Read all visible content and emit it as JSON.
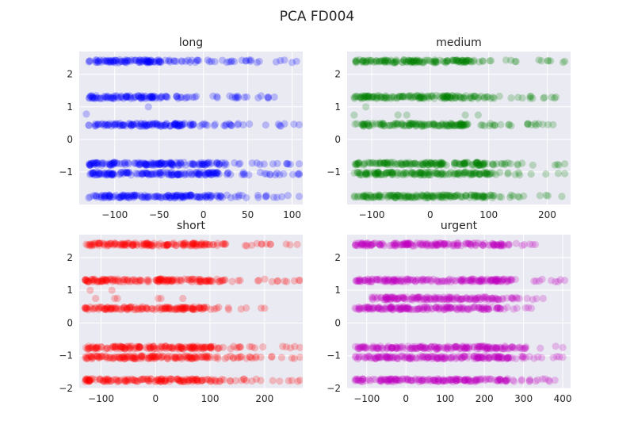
{
  "figure": {
    "title": "PCA FD004"
  },
  "chart_data": [
    {
      "type": "scatter",
      "title": "long",
      "color": "#0000ff",
      "xlim": [
        -140,
        112
      ],
      "ylim": [
        -2.0,
        2.7
      ],
      "xticks": [
        -100,
        -50,
        0,
        50,
        100
      ],
      "xtick_labels": [
        "−100",
        "−50",
        "0",
        "50",
        "100"
      ],
      "yticks": [
        -1,
        0,
        1,
        2
      ],
      "ytick_labels": [
        "−1",
        "0",
        "1",
        "2"
      ],
      "grid": true,
      "bands": [
        {
          "y": 2.4,
          "x_dense": [
            -130,
            -30
          ],
          "x_sparse": [
            -25,
            105
          ]
        },
        {
          "y": 1.3,
          "x_dense": [
            -130,
            -40
          ],
          "x_sparse": [
            -35,
            80
          ]
        },
        {
          "y": 0.45,
          "x_dense": [
            -130,
            -20
          ],
          "x_sparse": [
            -15,
            108
          ]
        },
        {
          "y": -0.75,
          "x_dense": [
            -130,
            10
          ],
          "x_sparse": [
            15,
            108
          ]
        },
        {
          "y": -1.05,
          "x_dense": [
            -130,
            20
          ],
          "x_sparse": [
            25,
            108
          ]
        },
        {
          "y": -1.75,
          "x_dense": [
            -130,
            10
          ],
          "x_sparse": [
            15,
            108
          ]
        }
      ],
      "outliers": [
        [
          -132,
          0.78
        ],
        [
          -62,
          1.0
        ]
      ]
    },
    {
      "type": "scatter",
      "title": "medium",
      "color": "#008000",
      "xlim": [
        -142,
        240
      ],
      "ylim": [
        -2.0,
        2.7
      ],
      "xticks": [
        -100,
        0,
        100,
        200
      ],
      "xtick_labels": [
        "−100",
        "0",
        "100",
        "200"
      ],
      "yticks": [
        -1,
        0,
        1,
        2
      ],
      "ytick_labels": [
        "−1",
        "0",
        "1",
        "2"
      ],
      "grid": true,
      "bands": [
        {
          "y": 2.4,
          "x_dense": [
            -130,
            60
          ],
          "x_sparse": [
            60,
            230
          ]
        },
        {
          "y": 1.3,
          "x_dense": [
            -130,
            80
          ],
          "x_sparse": [
            80,
            215
          ]
        },
        {
          "y": 0.45,
          "x_dense": [
            -130,
            60
          ],
          "x_sparse": [
            60,
            210
          ]
        },
        {
          "y": -0.75,
          "x_dense": [
            -130,
            90
          ],
          "x_sparse": [
            90,
            230
          ]
        },
        {
          "y": -1.05,
          "x_dense": [
            -130,
            90
          ],
          "x_sparse": [
            90,
            230
          ]
        },
        {
          "y": -1.75,
          "x_dense": [
            -130,
            90
          ],
          "x_sparse": [
            90,
            225
          ]
        }
      ],
      "outliers": [
        [
          -130,
          0.75
        ],
        [
          -110,
          1.0
        ],
        [
          -55,
          0.75
        ],
        [
          -40,
          0.75
        ],
        [
          60,
          0.75
        ],
        [
          82,
          0.75
        ]
      ]
    },
    {
      "type": "scatter",
      "title": "short",
      "color": "#ff0000",
      "xlim": [
        -140,
        270
      ],
      "ylim": [
        -2.0,
        2.7
      ],
      "xticks": [
        -100,
        0,
        100,
        200
      ],
      "xtick_labels": [
        "−100",
        "0",
        "100",
        "200"
      ],
      "yticks": [
        -2,
        -1,
        0,
        1,
        2
      ],
      "ytick_labels": [
        "−2",
        "−1",
        "0",
        "1",
        "2"
      ],
      "grid": true,
      "bands": [
        {
          "y": 2.4,
          "x_dense": [
            -130,
            90
          ],
          "x_sparse": [
            90,
            260
          ]
        },
        {
          "y": 1.3,
          "x_dense": [
            -130,
            100
          ],
          "x_sparse": [
            100,
            265
          ]
        },
        {
          "y": 0.45,
          "x_dense": [
            -130,
            80
          ],
          "x_sparse": [
            80,
            200
          ]
        },
        {
          "y": -0.75,
          "x_dense": [
            -130,
            100
          ],
          "x_sparse": [
            100,
            265
          ]
        },
        {
          "y": -1.05,
          "x_dense": [
            -130,
            100
          ],
          "x_sparse": [
            100,
            265
          ]
        },
        {
          "y": -1.75,
          "x_dense": [
            -130,
            100
          ],
          "x_sparse": [
            100,
            265
          ]
        }
      ],
      "outliers": [
        [
          -120,
          1.0
        ],
        [
          -110,
          0.75
        ],
        [
          -70,
          0.75
        ],
        [
          -80,
          1.0
        ],
        [
          -75,
          0.75
        ],
        [
          5,
          0.75
        ],
        [
          10,
          0.75
        ],
        [
          50,
          0.75
        ],
        [
          10,
          1.35
        ]
      ]
    },
    {
      "type": "scatter",
      "title": "urgent",
      "color": "#bf00bf",
      "xlim": [
        -150,
        420
      ],
      "ylim": [
        -2.0,
        2.7
      ],
      "xticks": [
        -100,
        0,
        100,
        200,
        300,
        400
      ],
      "xtick_labels": [
        "−100",
        "0",
        "100",
        "200",
        "300",
        "400"
      ],
      "yticks": [
        -2,
        -1,
        0,
        1,
        2
      ],
      "ytick_labels": [
        "−2",
        "−1",
        "0",
        "1",
        "2"
      ],
      "grid": true,
      "bands": [
        {
          "y": 2.4,
          "x_dense": [
            -130,
            250
          ],
          "x_sparse": [
            250,
            330
          ]
        },
        {
          "y": 1.3,
          "x_dense": [
            -130,
            260
          ],
          "x_sparse": [
            260,
            405
          ]
        },
        {
          "y": 0.75,
          "x_dense": [
            -90,
            250
          ],
          "x_sparse": [
            250,
            350
          ]
        },
        {
          "y": 0.45,
          "x_dense": [
            -130,
            240
          ],
          "x_sparse": [
            240,
            320
          ]
        },
        {
          "y": -0.75,
          "x_dense": [
            -130,
            270
          ],
          "x_sparse": [
            270,
            400
          ]
        },
        {
          "y": -1.05,
          "x_dense": [
            -130,
            270
          ],
          "x_sparse": [
            270,
            400
          ]
        },
        {
          "y": -1.75,
          "x_dense": [
            -130,
            260
          ],
          "x_sparse": [
            260,
            380
          ]
        }
      ],
      "outliers": []
    }
  ]
}
